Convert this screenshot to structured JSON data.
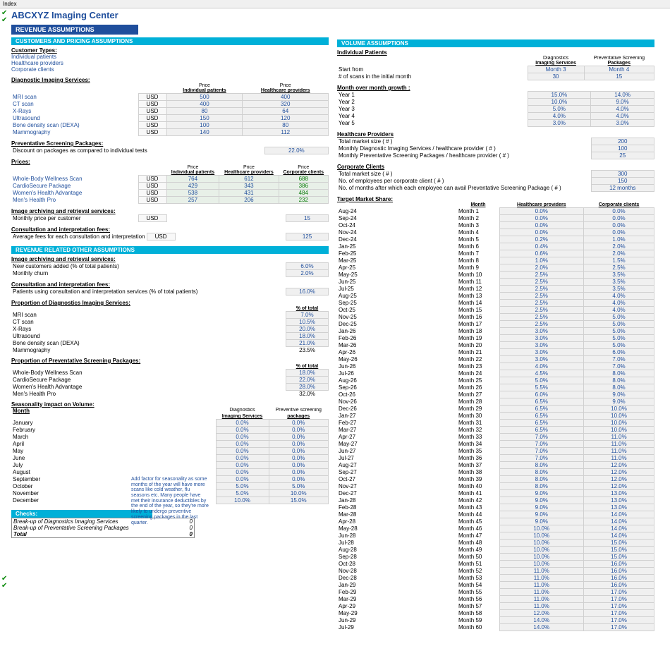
{
  "top": {
    "index": "Index"
  },
  "title": "ABCXYZ Imaging Center",
  "bars": {
    "revenue": "REVENUE ASSUMPTIONS",
    "customers": "CUSTOMERS AND PRICING ASSUMPTIONS",
    "other": "REVENUE RELATED OTHER ASSUMPTIONS",
    "checks": "Checks:",
    "volume": "VOLUME ASSUMPTIONS"
  },
  "headers": {
    "custTypes": "Customer Types:",
    "diagServices": "Diagnostic Imaging Services:",
    "prevPackages": "Preventative Screening Packages:",
    "prices": "Prices:",
    "archiving": "Image archiving and retrieval services:",
    "consult": "Consultation and interpretation fees:",
    "propDiag": "Proportion of Diagnostics Imaging Services:",
    "propPrev": "Proportion of Preventative Screening Packages:",
    "seasonality": "Seasonality impact on Volume:",
    "indiv": "Individual Patients",
    "mom": "Month over month growth :",
    "hcp": "Healthcare Providers",
    "corp": "Corporate Clients",
    "tms": "Target Market Share:"
  },
  "colhdrs": {
    "price": "Price",
    "ip": "Individual patients",
    "hp": "Healthcare providers",
    "cc": "Corporate clients",
    "pctTotal": "% of total",
    "diag": "Diagnostics",
    "imgSvc": "Imaging Services",
    "prev": "Preventive screening",
    "prevCap": "Preventative Screening",
    "packages": "packages",
    "packagesCap": "Packages",
    "month": "Month",
    "hcP": "Healthcare providers",
    "corpC": "Corporate clients"
  },
  "customers": {
    "c0": "Individual patients",
    "c1": "Healthcare providers",
    "c2": "Corporate clients"
  },
  "usd": "USD",
  "diag": {
    "rows": [
      {
        "name": "MRI scan",
        "ip": "500",
        "hp": "400"
      },
      {
        "name": "CT scan",
        "ip": "400",
        "hp": "320"
      },
      {
        "name": "X-Rays",
        "ip": "80",
        "hp": "64"
      },
      {
        "name": "Ultrasound",
        "ip": "150",
        "hp": "120"
      },
      {
        "name": "Bone density scan (DEXA)",
        "ip": "100",
        "hp": "80"
      },
      {
        "name": "Mammography",
        "ip": "140",
        "hp": "112"
      }
    ]
  },
  "discount": {
    "label": "Discount on packages as compared to individual tests",
    "val": "22.0%"
  },
  "prices": {
    "rows": [
      {
        "name": "Whole-Body Wellness Scan",
        "ip": "764",
        "hp": "612",
        "cc": "688"
      },
      {
        "name": "CardioSecure Package",
        "ip": "429",
        "hp": "343",
        "cc": "386"
      },
      {
        "name": "Women's Health Advantage",
        "ip": "538",
        "hp": "431",
        "cc": "484"
      },
      {
        "name": "Men's Health Pro",
        "ip": "257",
        "hp": "206",
        "cc": "232"
      }
    ]
  },
  "archive": {
    "label": "Monthly price per customer",
    "val": "15"
  },
  "consult": {
    "label": "Average fees for each consultation and interpretation",
    "val": "125"
  },
  "other": {
    "archiveHdr": "Image archiving and retrieval services:",
    "newCust": "New customers added (% of total patients)",
    "newCustV": "6.0%",
    "churn": "Monthly churn",
    "churnV": "2.0%",
    "consultHdr": "Consultation and interpretation fees:",
    "consultPct": "Patients using consultation and interpretation services  (% of total patients)",
    "consultPctV": "16.0%"
  },
  "propDiag": {
    "rows": [
      {
        "name": "MRI scan",
        "v": "7.0%"
      },
      {
        "name": "CT scan",
        "v": "10.5%"
      },
      {
        "name": "X-Rays",
        "v": "20.0%"
      },
      {
        "name": "Ultrasound",
        "v": "18.0%"
      },
      {
        "name": "Bone density scan (DEXA)",
        "v": "21.0%"
      },
      {
        "name": "Mammography",
        "v": "23.5%"
      }
    ]
  },
  "propPrev": {
    "rows": [
      {
        "name": "Whole-Body Wellness Scan",
        "v": "18.0%"
      },
      {
        "name": "CardioSecure Package",
        "v": "22.0%"
      },
      {
        "name": "Women's Health Advantage",
        "v": "28.0%"
      },
      {
        "name": "Men's Health Pro",
        "v": "32.0%"
      }
    ]
  },
  "seasonNote": "Add factor for seasonality as some months of the year will have more scans like cold weather, flu seasons etc. Many people have met their insurance deductibles by the end of the year, so they're more likely to undergo preventive screening packages  in the last quarter.",
  "season": {
    "rows": [
      {
        "m": "January",
        "d": "0.0%",
        "p": "0.0%"
      },
      {
        "m": "February",
        "d": "0.0%",
        "p": "0.0%"
      },
      {
        "m": "March",
        "d": "0.0%",
        "p": "0.0%"
      },
      {
        "m": "April",
        "d": "0.0%",
        "p": "0.0%"
      },
      {
        "m": "May",
        "d": "0.0%",
        "p": "0.0%"
      },
      {
        "m": "June",
        "d": "0.0%",
        "p": "0.0%"
      },
      {
        "m": "July",
        "d": "0.0%",
        "p": "0.0%"
      },
      {
        "m": "August",
        "d": "0.0%",
        "p": "0.0%"
      },
      {
        "m": "September",
        "d": "0.0%",
        "p": "0.0%"
      },
      {
        "m": "October",
        "d": "5.0%",
        "p": "5.0%"
      },
      {
        "m": "November",
        "d": "5.0%",
        "p": "10.0%"
      },
      {
        "m": "December",
        "d": "10.0%",
        "p": "15.0%"
      }
    ]
  },
  "checks": {
    "r0l": "Break-up of Diagnostics Imaging Services",
    "r0v": "0",
    "r1l": "Break-up of Preventative Screening Packages",
    "r1v": "0",
    "r2l": "Total",
    "r2v": "0"
  },
  "vol": {
    "start": "Start from",
    "startD": "Month 3",
    "startP": "Month 4",
    "scans": "# of scans in the initial month",
    "scansD": "30",
    "scansP": "15",
    "years": [
      {
        "y": "Year 1",
        "d": "15.0%",
        "p": "14.0%"
      },
      {
        "y": "Year 2",
        "d": "10.0%",
        "p": "9.0%"
      },
      {
        "y": "Year 3",
        "d": "5.0%",
        "p": "4.0%"
      },
      {
        "y": "Year 4",
        "d": "4.0%",
        "p": "4.0%"
      },
      {
        "y": "Year 5",
        "d": "3.0%",
        "p": "3.0%"
      }
    ],
    "hcp": {
      "tms": "Total market size ( # )",
      "tmsV": "200",
      "mdi": "Monthly Diagnostic Imaging Services / healthcare provider ( # )",
      "mdiV": "100",
      "mps": "Monthly Preventative Screening Packages / healthcare provider ( # )",
      "mpsV": "25"
    },
    "corp": {
      "tms": "Total market size ( # )",
      "tmsV": "300",
      "emp": "No. of employees per corporate client ( # )",
      "empV": "150",
      "mon": "No. of months after which each employee can avail Preventative Screening Package ( # )",
      "monV": "12 months"
    }
  },
  "ms": {
    "rows": [
      {
        "d": "Aug-24",
        "m": "Month 1",
        "hp": "0.0%",
        "cc": "0.0%"
      },
      {
        "d": "Sep-24",
        "m": "Month 2",
        "hp": "0.0%",
        "cc": "0.0%"
      },
      {
        "d": "Oct-24",
        "m": "Month 3",
        "hp": "0.0%",
        "cc": "0.0%"
      },
      {
        "d": "Nov-24",
        "m": "Month 4",
        "hp": "0.0%",
        "cc": "0.0%"
      },
      {
        "d": "Dec-24",
        "m": "Month 5",
        "hp": "0.2%",
        "cc": "1.0%"
      },
      {
        "d": "Jan-25",
        "m": "Month 6",
        "hp": "0.4%",
        "cc": "2.0%"
      },
      {
        "d": "Feb-25",
        "m": "Month 7",
        "hp": "0.6%",
        "cc": "2.0%"
      },
      {
        "d": "Mar-25",
        "m": "Month 8",
        "hp": "1.0%",
        "cc": "1.5%"
      },
      {
        "d": "Apr-25",
        "m": "Month 9",
        "hp": "2.0%",
        "cc": "2.5%"
      },
      {
        "d": "May-25",
        "m": "Month 10",
        "hp": "2.5%",
        "cc": "3.5%"
      },
      {
        "d": "Jun-25",
        "m": "Month 11",
        "hp": "2.5%",
        "cc": "3.5%"
      },
      {
        "d": "Jul-25",
        "m": "Month 12",
        "hp": "2.5%",
        "cc": "3.5%"
      },
      {
        "d": "Aug-25",
        "m": "Month 13",
        "hp": "2.5%",
        "cc": "4.0%"
      },
      {
        "d": "Sep-25",
        "m": "Month 14",
        "hp": "2.5%",
        "cc": "4.0%"
      },
      {
        "d": "Oct-25",
        "m": "Month 15",
        "hp": "2.5%",
        "cc": "4.0%"
      },
      {
        "d": "Nov-25",
        "m": "Month 16",
        "hp": "2.5%",
        "cc": "5.0%"
      },
      {
        "d": "Dec-25",
        "m": "Month 17",
        "hp": "2.5%",
        "cc": "5.0%"
      },
      {
        "d": "Jan-26",
        "m": "Month 18",
        "hp": "3.0%",
        "cc": "5.0%"
      },
      {
        "d": "Feb-26",
        "m": "Month 19",
        "hp": "3.0%",
        "cc": "5.0%"
      },
      {
        "d": "Mar-26",
        "m": "Month 20",
        "hp": "3.0%",
        "cc": "5.0%"
      },
      {
        "d": "Apr-26",
        "m": "Month 21",
        "hp": "3.0%",
        "cc": "6.0%"
      },
      {
        "d": "May-26",
        "m": "Month 22",
        "hp": "3.0%",
        "cc": "7.0%"
      },
      {
        "d": "Jun-26",
        "m": "Month 23",
        "hp": "4.0%",
        "cc": "7.0%"
      },
      {
        "d": "Jul-26",
        "m": "Month 24",
        "hp": "4.5%",
        "cc": "8.0%"
      },
      {
        "d": "Aug-26",
        "m": "Month 25",
        "hp": "5.0%",
        "cc": "8.0%"
      },
      {
        "d": "Sep-26",
        "m": "Month 26",
        "hp": "5.5%",
        "cc": "8.0%"
      },
      {
        "d": "Oct-26",
        "m": "Month 27",
        "hp": "6.0%",
        "cc": "9.0%"
      },
      {
        "d": "Nov-26",
        "m": "Month 28",
        "hp": "6.5%",
        "cc": "9.0%"
      },
      {
        "d": "Dec-26",
        "m": "Month 29",
        "hp": "6.5%",
        "cc": "10.0%"
      },
      {
        "d": "Jan-27",
        "m": "Month 30",
        "hp": "6.5%",
        "cc": "10.0%"
      },
      {
        "d": "Feb-27",
        "m": "Month 31",
        "hp": "6.5%",
        "cc": "10.0%"
      },
      {
        "d": "Mar-27",
        "m": "Month 32",
        "hp": "6.5%",
        "cc": "10.0%"
      },
      {
        "d": "Apr-27",
        "m": "Month 33",
        "hp": "7.0%",
        "cc": "11.0%"
      },
      {
        "d": "May-27",
        "m": "Month 34",
        "hp": "7.0%",
        "cc": "11.0%"
      },
      {
        "d": "Jun-27",
        "m": "Month 35",
        "hp": "7.0%",
        "cc": "11.0%"
      },
      {
        "d": "Jul-27",
        "m": "Month 36",
        "hp": "7.0%",
        "cc": "11.0%"
      },
      {
        "d": "Aug-27",
        "m": "Month 37",
        "hp": "8.0%",
        "cc": "12.0%"
      },
      {
        "d": "Sep-27",
        "m": "Month 38",
        "hp": "8.0%",
        "cc": "12.0%"
      },
      {
        "d": "Oct-27",
        "m": "Month 39",
        "hp": "8.0%",
        "cc": "12.0%"
      },
      {
        "d": "Nov-27",
        "m": "Month 40",
        "hp": "8.0%",
        "cc": "12.0%"
      },
      {
        "d": "Dec-27",
        "m": "Month 41",
        "hp": "9.0%",
        "cc": "13.0%"
      },
      {
        "d": "Jan-28",
        "m": "Month 42",
        "hp": "9.0%",
        "cc": "13.0%"
      },
      {
        "d": "Feb-28",
        "m": "Month 43",
        "hp": "9.0%",
        "cc": "13.0%"
      },
      {
        "d": "Mar-28",
        "m": "Month 44",
        "hp": "9.0%",
        "cc": "14.0%"
      },
      {
        "d": "Apr-28",
        "m": "Month 45",
        "hp": "9.0%",
        "cc": "14.0%"
      },
      {
        "d": "May-28",
        "m": "Month 46",
        "hp": "10.0%",
        "cc": "14.0%"
      },
      {
        "d": "Jun-28",
        "m": "Month 47",
        "hp": "10.0%",
        "cc": "14.0%"
      },
      {
        "d": "Jul-28",
        "m": "Month 48",
        "hp": "10.0%",
        "cc": "15.0%"
      },
      {
        "d": "Aug-28",
        "m": "Month 49",
        "hp": "10.0%",
        "cc": "15.0%"
      },
      {
        "d": "Sep-28",
        "m": "Month 50",
        "hp": "10.0%",
        "cc": "15.0%"
      },
      {
        "d": "Oct-28",
        "m": "Month 51",
        "hp": "10.0%",
        "cc": "16.0%"
      },
      {
        "d": "Nov-28",
        "m": "Month 52",
        "hp": "11.0%",
        "cc": "16.0%"
      },
      {
        "d": "Dec-28",
        "m": "Month 53",
        "hp": "11.0%",
        "cc": "16.0%"
      },
      {
        "d": "Jan-29",
        "m": "Month 54",
        "hp": "11.0%",
        "cc": "16.0%"
      },
      {
        "d": "Feb-29",
        "m": "Month 55",
        "hp": "11.0%",
        "cc": "17.0%"
      },
      {
        "d": "Mar-29",
        "m": "Month 56",
        "hp": "11.0%",
        "cc": "17.0%"
      },
      {
        "d": "Apr-29",
        "m": "Month 57",
        "hp": "11.0%",
        "cc": "17.0%"
      },
      {
        "d": "May-29",
        "m": "Month 58",
        "hp": "12.0%",
        "cc": "17.0%"
      },
      {
        "d": "Jun-29",
        "m": "Month 59",
        "hp": "14.0%",
        "cc": "17.0%"
      },
      {
        "d": "Jul-29",
        "m": "Month 60",
        "hp": "14.0%",
        "cc": "17.0%"
      }
    ]
  }
}
